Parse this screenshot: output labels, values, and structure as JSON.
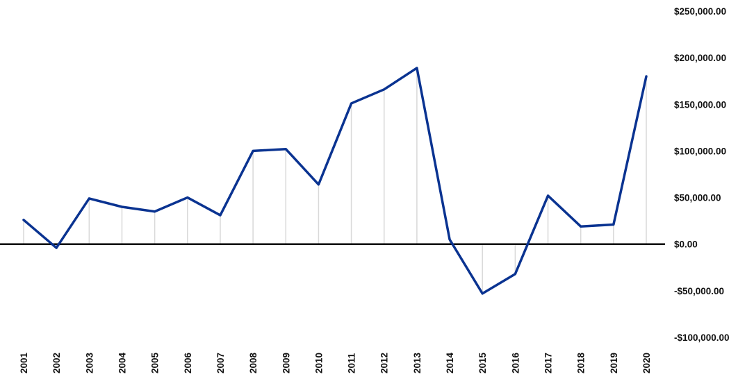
{
  "chart_data": {
    "type": "line",
    "title": "",
    "xlabel": "",
    "ylabel": "",
    "categories": [
      "2001",
      "2002",
      "2003",
      "2004",
      "2005",
      "2006",
      "2007",
      "2008",
      "2009",
      "2010",
      "2011",
      "2012",
      "2013",
      "2014",
      "2015",
      "2016",
      "2017",
      "2018",
      "2019",
      "2020"
    ],
    "series": [
      {
        "values": [
          26000,
          -4000,
          49000,
          40000,
          35000,
          50000,
          31000,
          100000,
          102000,
          64000,
          151000,
          166000,
          189000,
          5000,
          -53000,
          -32000,
          52000,
          19000,
          21000,
          180000
        ]
      }
    ],
    "ylim": [
      -100000,
      250000
    ],
    "yticks": [
      250000,
      200000,
      150000,
      100000,
      50000,
      0,
      -50000,
      -100000
    ],
    "ytick_labels": [
      "$250,000.00",
      "$200,000.00",
      "$150,000.00",
      "$100,000.00",
      "$50,000.00",
      "$0.00",
      "-$50,000.00",
      "-$100,000.00"
    ],
    "grid": "vertical drop lines at each category",
    "zero_line": true,
    "legend": "none",
    "colors": {
      "line": "#0a3391",
      "zero_line": "#000000",
      "drop_lines": "#d9d9d9",
      "text": "#111111"
    }
  }
}
